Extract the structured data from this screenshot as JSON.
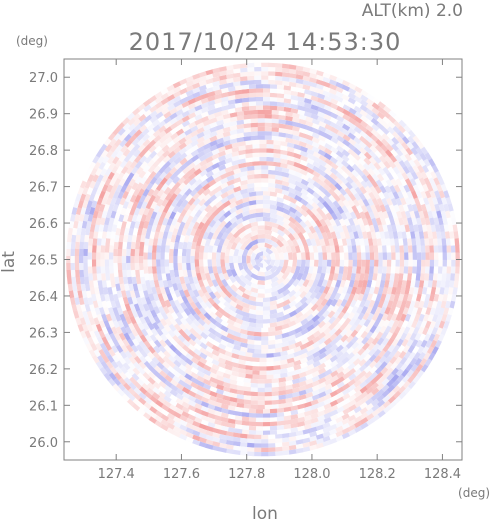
{
  "chart_data": {
    "type": "heatmap",
    "title": "2017/10/24 14:53:30",
    "subtitle": "ALT(km) 2.0",
    "xlabel": "lon",
    "ylabel": "lat",
    "xunit": "(deg)",
    "yunit": "(deg)",
    "xlim": [
      127.24,
      128.46
    ],
    "ylim": [
      25.95,
      27.05
    ],
    "xticks": [
      127.4,
      127.6,
      127.8,
      128.0,
      128.2,
      128.4
    ],
    "yticks": [
      26.0,
      26.1,
      26.2,
      26.3,
      26.4,
      26.5,
      26.6,
      26.7,
      26.8,
      26.9,
      27.0
    ],
    "radar_center": {
      "lon": 127.85,
      "lat": 26.5
    },
    "radar_radius_lat_deg": 0.54,
    "color_positive": "#f4a0a0",
    "color_negative": "#a8a8f0",
    "color_zero": "#ffffff",
    "grid": false
  }
}
